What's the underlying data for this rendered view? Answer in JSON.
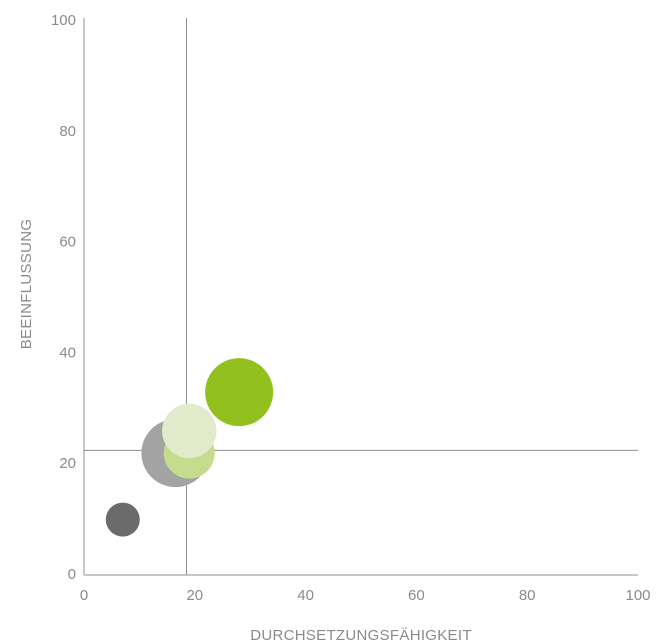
{
  "chart_data": {
    "type": "scatter",
    "title": "",
    "xlabel": "DURCHSETZUNGSFÄHIGKEIT",
    "ylabel": "BEEINFLUSSUNG",
    "xlim": [
      0,
      100
    ],
    "ylim": [
      0,
      100
    ],
    "x_ticks": [
      "0",
      "20",
      "40",
      "60",
      "80",
      "100"
    ],
    "y_ticks": [
      "0",
      "20",
      "40",
      "60",
      "80",
      "100"
    ],
    "reference_lines": {
      "x": 18.5,
      "y": 22.5
    },
    "grid": false,
    "points": [
      {
        "x": 7,
        "y": 10,
        "size": 0.5,
        "color": "#6b6b6b"
      },
      {
        "x": 16.5,
        "y": 22,
        "size": 1.0,
        "color": "#a3a3a3"
      },
      {
        "x": 19,
        "y": 22,
        "size": 0.75,
        "color": "#c5dc8c"
      },
      {
        "x": 19,
        "y": 26,
        "size": 0.8,
        "color": "#e1ebcc"
      },
      {
        "x": 28,
        "y": 33,
        "size": 1.0,
        "color": "#92c11f"
      }
    ]
  }
}
